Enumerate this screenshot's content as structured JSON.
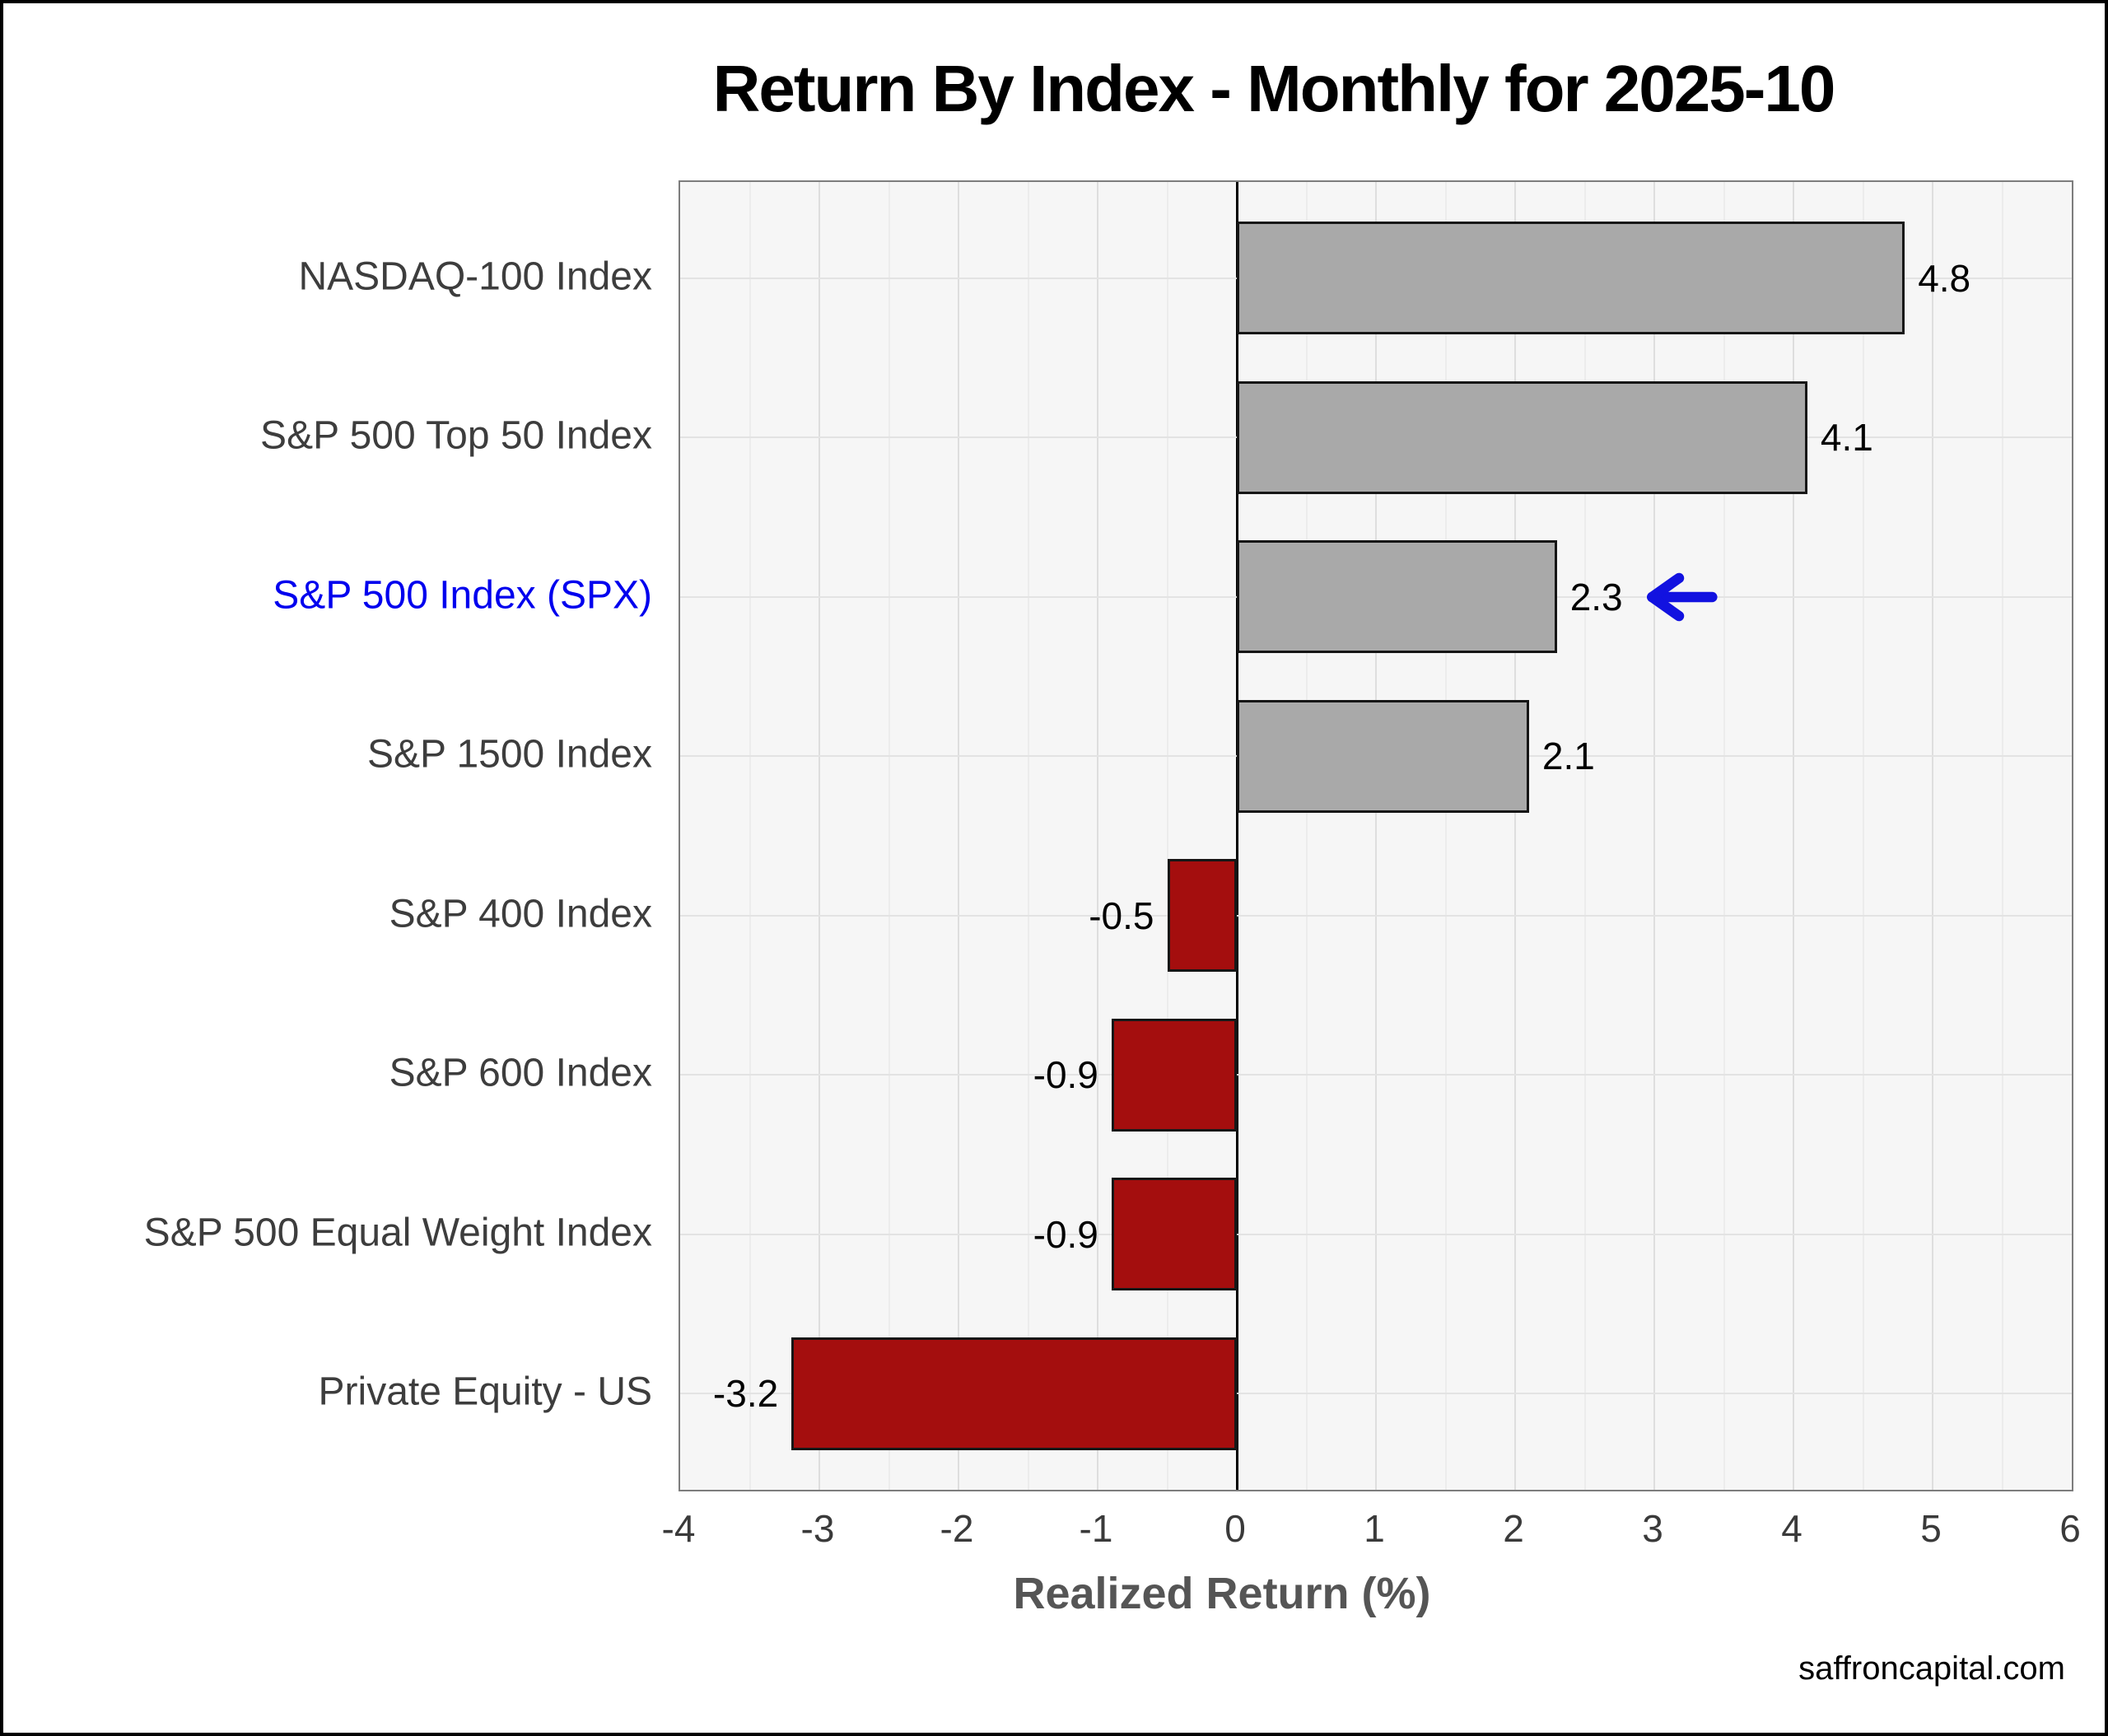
{
  "title": "Return By Index - Monthly for 2025-10",
  "x_axis_label": "Realized Return (%)",
  "footer": "saffroncapital.com",
  "chart_data": {
    "type": "bar",
    "orientation": "horizontal",
    "title": "Return By Index - Monthly for 2025-10",
    "categories": [
      "NASDAQ-100 Index",
      "S&P 500 Top 50 Index",
      "S&P 500 Index (SPX)",
      "S&P 1500 Index",
      "S&P 400 Index",
      "S&P 600 Index",
      "S&P 500 Equal Weight Index",
      "Private Equity - US"
    ],
    "values": [
      4.8,
      4.1,
      2.3,
      2.1,
      -0.5,
      -0.9,
      -0.9,
      -3.2
    ],
    "value_labels": [
      "4.8",
      "4.1",
      "2.3",
      "2.1",
      "-0.5",
      "-0.9",
      "-0.9",
      "-3.2"
    ],
    "xlabel": "Realized Return (%)",
    "xlim": [
      -4,
      6
    ],
    "xticks": [
      -4,
      -3,
      -2,
      -1,
      0,
      1,
      2,
      3,
      4,
      5,
      6
    ],
    "grid": true,
    "grid_minor_step": 0.5,
    "legend": "none",
    "highlight_index": 2,
    "highlight_annotation": "left-arrow",
    "colors": {
      "positive_bar": "#a9a9a9",
      "negative_bar": "#a40e0e",
      "bar_border": "#161616",
      "highlight_label": "#0000ee",
      "arrow": "#1212e0",
      "plot_background": "#f6f6f6",
      "grid_major": "#dedede",
      "grid_minor": "#ececec",
      "zero_line": "#000000",
      "axis_border": "#7d7d7d",
      "label_text": "#3d3d3d",
      "value_text": "#000000"
    }
  }
}
